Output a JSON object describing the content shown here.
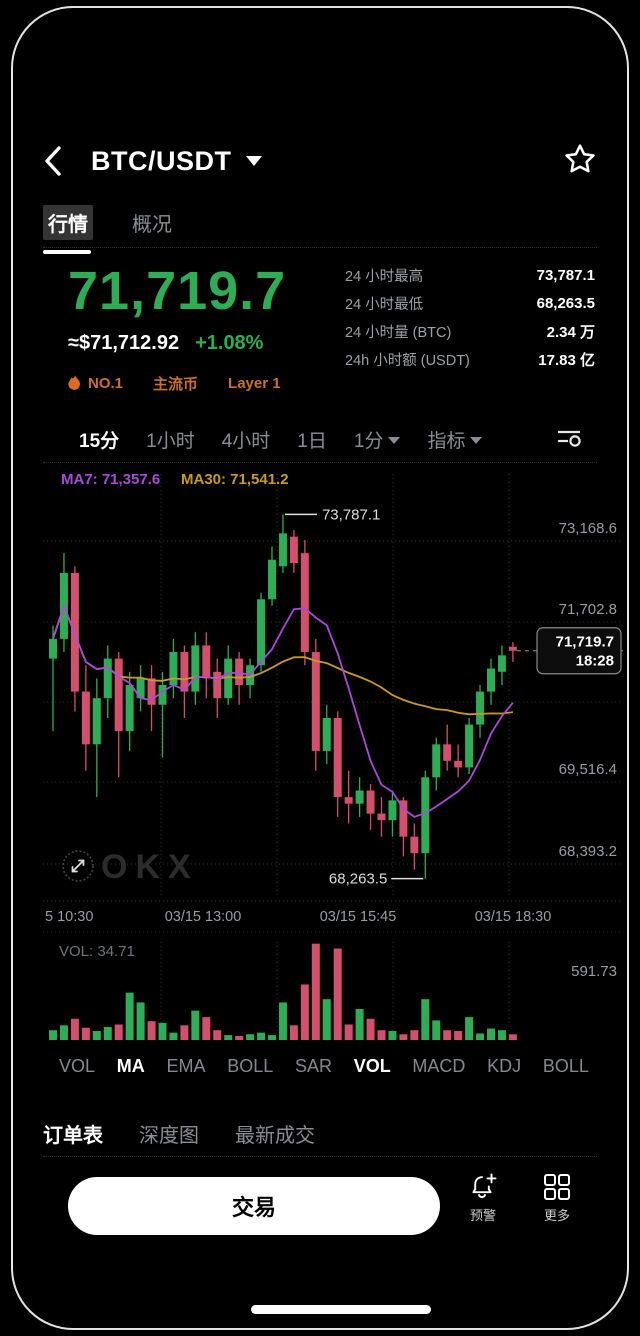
{
  "colors": {
    "up": "#2EAD56",
    "down": "#D1506B",
    "price_green": "#2EAD56",
    "badge_orange": "#C9712E",
    "ma7_purple": "#A94BD6",
    "ma30_yellow": "#C9992A",
    "axis_gray": "#9A9EA2",
    "grid_gray": "#2e2e2e"
  },
  "header": {
    "title": "BTC/USDT"
  },
  "tabs": [
    {
      "label": "行情"
    },
    {
      "label": "概况"
    }
  ],
  "price": {
    "last": "71,719.7",
    "fiat": "≈$71,712.92",
    "change": "+1.08%"
  },
  "badges": [
    {
      "label": "NO.1"
    },
    {
      "label": "主流币"
    },
    {
      "label": "Layer 1"
    }
  ],
  "stats": [
    {
      "label": "24 小时最高",
      "value": "73,787.1"
    },
    {
      "label": "24 小时最低",
      "value": "68,263.5"
    },
    {
      "label": "24 小时量 (BTC)",
      "value": "2.34 万"
    },
    {
      "label": "24h 小时额 (USDT)",
      "value": "17.83 亿"
    }
  ],
  "timeframes": [
    {
      "label": "15分",
      "active": true,
      "caret": false
    },
    {
      "label": "1小时",
      "active": false,
      "caret": false
    },
    {
      "label": "4小时",
      "active": false,
      "caret": false
    },
    {
      "label": "1日",
      "active": false,
      "caret": false
    },
    {
      "label": "1分",
      "active": false,
      "caret": true
    },
    {
      "label": "指标",
      "active": false,
      "caret": true
    }
  ],
  "chart_data": {
    "type": "candlestick",
    "ma_labels": [
      {
        "text": "MA7: 71,357.6",
        "color": "#A94BD6"
      },
      {
        "text": "MA30: 71,541.2",
        "color": "#C9992A"
      }
    ],
    "y_axis_labels": [
      "73,168.6",
      "71,702.8",
      "69,516.4",
      "68,393.2"
    ],
    "x_axis_labels": [
      "5 10:30",
      "03/15 13:00",
      "03/15 15:45",
      "03/15 18:30"
    ],
    "annotations": {
      "high": "73,787.1",
      "low": "68,263.5",
      "last": "71,719.7",
      "last_time": "18:28"
    },
    "price_range": [
      68000,
      74400
    ],
    "candles": [
      [
        71600,
        72100,
        70500,
        71900
      ],
      [
        71900,
        73200,
        71700,
        72900
      ],
      [
        72900,
        73000,
        70800,
        71100
      ],
      [
        71100,
        71500,
        69900,
        70300
      ],
      [
        70300,
        71300,
        69500,
        71000
      ],
      [
        71000,
        71800,
        70700,
        71600
      ],
      [
        71600,
        71700,
        69800,
        70500
      ],
      [
        70500,
        71400,
        70200,
        71200
      ],
      [
        71000,
        71500,
        70800,
        71300
      ],
      [
        71300,
        71500,
        70500,
        70900
      ],
      [
        70900,
        71400,
        70100,
        71200
      ],
      [
        71200,
        71900,
        71000,
        71700
      ],
      [
        71700,
        71800,
        70700,
        71100
      ],
      [
        71100,
        72000,
        70900,
        71800
      ],
      [
        71800,
        72000,
        71000,
        71300
      ],
      [
        71400,
        71600,
        70700,
        71000
      ],
      [
        71000,
        71800,
        70900,
        71600
      ],
      [
        71600,
        71700,
        70900,
        71200
      ],
      [
        71200,
        71600,
        71000,
        71500
      ],
      [
        71500,
        72600,
        71400,
        72500
      ],
      [
        72500,
        73300,
        72400,
        73100
      ],
      [
        73000,
        73787.1,
        72900,
        73500
      ],
      [
        73450,
        73550,
        72900,
        73050
      ],
      [
        73200,
        73400,
        71500,
        71700
      ],
      [
        71700,
        71900,
        69900,
        70200
      ],
      [
        70200,
        70900,
        70000,
        70700
      ],
      [
        70700,
        70800,
        69200,
        69500
      ],
      [
        69500,
        69900,
        69100,
        69400
      ],
      [
        69400,
        69800,
        69200,
        69600
      ],
      [
        69600,
        69700,
        69000,
        69250
      ],
      [
        69250,
        69500,
        68900,
        69150
      ],
      [
        69150,
        69600,
        68900,
        69450
      ],
      [
        69450,
        69500,
        68600,
        68900
      ],
      [
        68900,
        69100,
        68400,
        68650
      ],
      [
        68650,
        69900,
        68263.5,
        69800
      ],
      [
        69800,
        70400,
        69600,
        70300
      ],
      [
        70300,
        70600,
        69900,
        70050
      ],
      [
        70050,
        70300,
        69800,
        69950
      ],
      [
        69950,
        70700,
        69850,
        70600
      ],
      [
        70600,
        71200,
        70400,
        71100
      ],
      [
        71100,
        71600,
        70900,
        71450
      ],
      [
        71400,
        71800,
        71200,
        71650
      ],
      [
        71780,
        71850,
        71550,
        71719.7
      ]
    ],
    "volume": {
      "label": "VOL: 34.71",
      "scale_label": "591.73",
      "max": 600,
      "values": [
        60,
        90,
        130,
        75,
        55,
        80,
        95,
        290,
        230,
        115,
        105,
        45,
        90,
        180,
        140,
        60,
        30,
        25,
        35,
        45,
        30,
        230,
        90,
        340,
        590,
        250,
        560,
        95,
        190,
        130,
        60,
        55,
        35,
        60,
        250,
        120,
        60,
        55,
        140,
        40,
        70,
        60,
        34.71
      ]
    },
    "watermark": "OKX"
  },
  "indicators": [
    {
      "label": "VOL",
      "active": false
    },
    {
      "label": "MA",
      "active": true
    },
    {
      "label": "EMA",
      "active": false
    },
    {
      "label": "BOLL",
      "active": false
    },
    {
      "label": "SAR",
      "active": false
    },
    {
      "label": "VOL",
      "active": true
    },
    {
      "label": "MACD",
      "active": false
    },
    {
      "label": "KDJ",
      "active": false
    },
    {
      "label": "BOLL",
      "active": false
    }
  ],
  "bottom_tabs": [
    {
      "label": "订单表"
    },
    {
      "label": "深度图"
    },
    {
      "label": "最新成交"
    }
  ],
  "actions": {
    "trade": "交易",
    "alert": "预警",
    "more": "更多"
  }
}
